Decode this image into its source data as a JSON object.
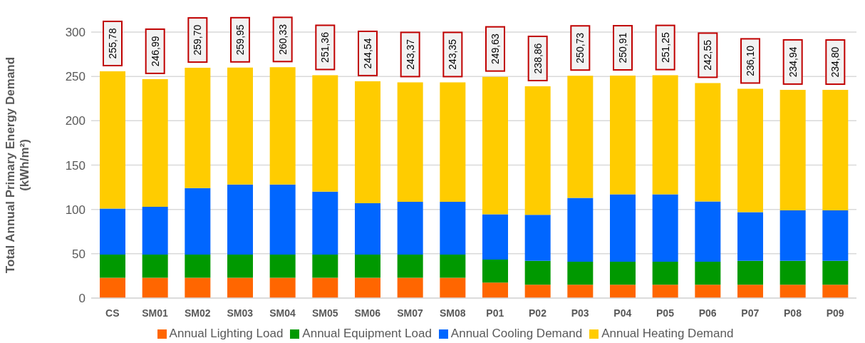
{
  "chart_data": {
    "type": "bar",
    "stacked": true,
    "ylabel": "Total Annual Primary Energy Demand (kWh/m²)",
    "categories": [
      "CS",
      "SM01",
      "SM02",
      "SM03",
      "SM04",
      "SM05",
      "SM06",
      "SM07",
      "SM08",
      "P01",
      "P02",
      "P03",
      "P04",
      "P05",
      "P06",
      "P07",
      "P08",
      "P09"
    ],
    "series": [
      {
        "name": "Annual Lighting Load",
        "color": "#ff6600",
        "values": [
          23,
          23,
          23,
          23,
          23,
          23,
          23,
          23,
          23,
          17.5,
          15,
          15,
          15,
          15,
          15,
          15,
          15,
          15
        ]
      },
      {
        "name": "Annual Equipment Load",
        "color": "#009900",
        "values": [
          26,
          26,
          26,
          26,
          26,
          26,
          26,
          26,
          26,
          26,
          27,
          26,
          26,
          26,
          26,
          27,
          27,
          27
        ]
      },
      {
        "name": "Annual Cooling Demand",
        "color": "#0066ff",
        "values": [
          52,
          54,
          75,
          79,
          79,
          71,
          58,
          59.5,
          59.5,
          51,
          52,
          72,
          76,
          76,
          68,
          55,
          57,
          57
        ]
      },
      {
        "name": "Annual Heating Demand",
        "color": "#ffcc00",
        "values": [
          154.78,
          143.99,
          135.7,
          131.95,
          132.33,
          131.36,
          137.54,
          134.87,
          134.85,
          155.13,
          144.86,
          137.73,
          133.91,
          134.25,
          133.55,
          139.1,
          135.94,
          135.8
        ]
      }
    ],
    "totals": [
      "255,78",
      "246,99",
      "259,70",
      "259,95",
      "260,33",
      "251,36",
      "244,54",
      "243,37",
      "243,35",
      "249,63",
      "238,86",
      "250,73",
      "250,91",
      "251,25",
      "242,55",
      "236,10",
      "234,94",
      "234,80"
    ],
    "ylim": [
      0,
      300
    ],
    "yticks": [
      0,
      50,
      100,
      150,
      200,
      250,
      300
    ],
    "grid": "y",
    "legend": "bottom"
  }
}
